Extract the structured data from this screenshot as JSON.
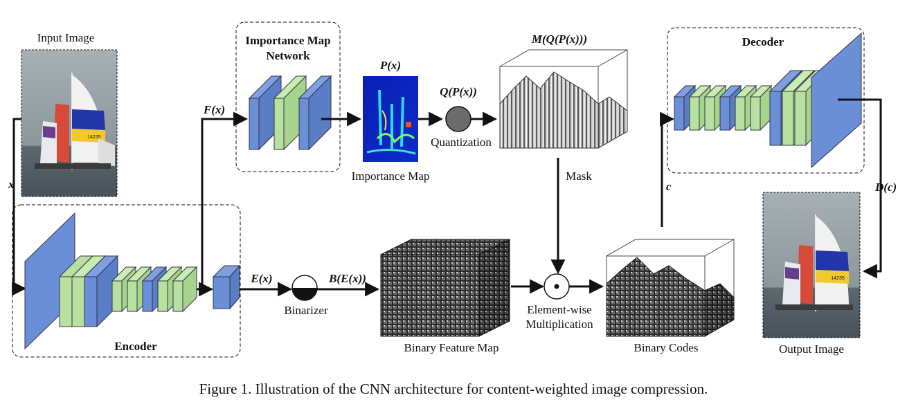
{
  "labels": {
    "input_image": "Input Image",
    "x": "x",
    "encoder": "Encoder",
    "fx": "F(x)",
    "importance_net_line1": "Importance Map",
    "importance_net_line2": "Network",
    "px": "P(x)",
    "qpx": "Q(P(x))",
    "quantization": "Quantization",
    "importance_map": "Importance Map",
    "mqpx": "M(Q(P(x)))",
    "mask": "Mask",
    "ex": "E(x)",
    "binarizer": "Binarizer",
    "bex": "B(E(x))",
    "binary_feature_map": "Binary Feature Map",
    "elementwise_line1": "Element-wise",
    "elementwise_line2": "Multiplication",
    "binary_codes": "Binary Codes",
    "c": "c",
    "decoder": "Decoder",
    "dc": "D(c)",
    "output_image": "Output Image",
    "sail_number_in": "14235",
    "sail_number_out": "14235"
  },
  "caption": "Figure 1. Illustration of the CNN architecture for content-weighted image compression.",
  "colors": {
    "conv_blue": "#6b8fd6",
    "conv_green": "#b8e0a0",
    "sea": "#59656b",
    "sky": "#9aa3a7",
    "quantizer": "#6b6b6b",
    "cube": "#2e2e2e"
  }
}
